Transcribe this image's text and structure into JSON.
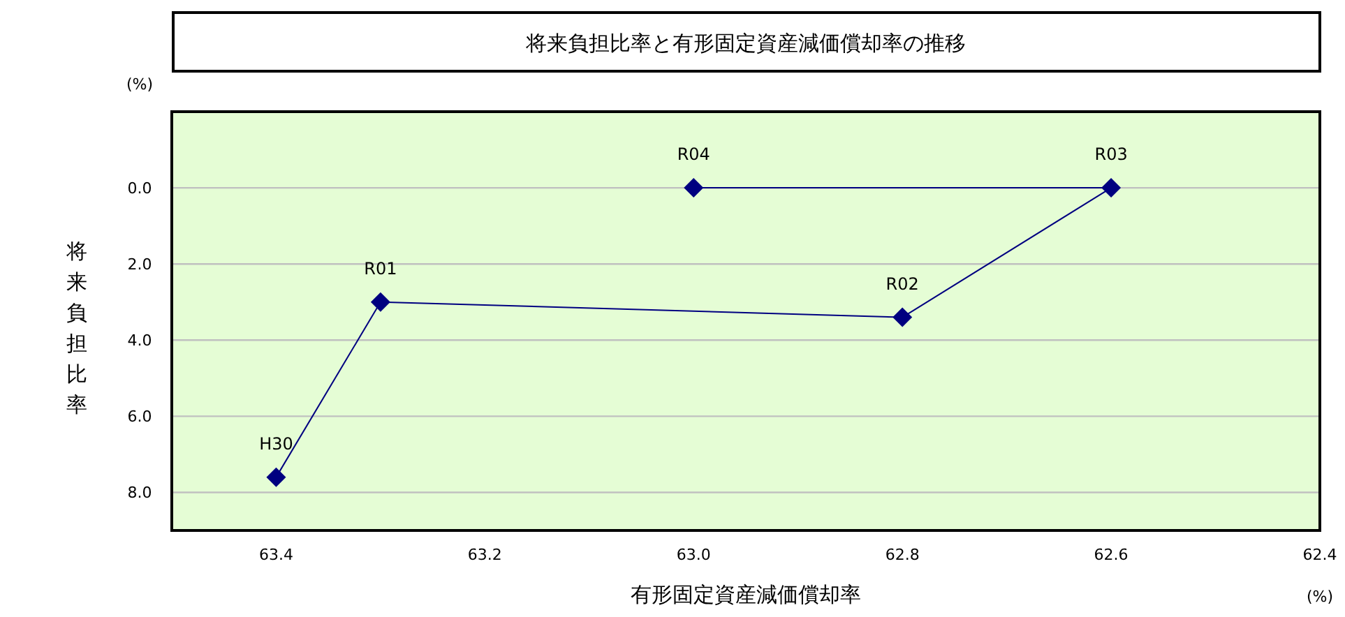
{
  "chart_data": {
    "type": "line",
    "title": "将来負担比率と有形固定資産減価償却率の推移",
    "xlabel": "有形固定資産減価償却率",
    "ylabel": "将来負担比率",
    "x": [
      63.4,
      63.3,
      62.8,
      62.6,
      63.0
    ],
    "series": [
      {
        "color": "#000080",
        "values": [
          7.6,
          3.0,
          3.4,
          0.0,
          0.0
        ]
      }
    ],
    "xlim": [
      63.5,
      62.4
    ],
    "xticks": [
      {
        "value": 63.4,
        "label": "63.4"
      },
      {
        "value": 63.2,
        "label": "63.2"
      },
      {
        "value": 63.0,
        "label": "63.0"
      },
      {
        "value": 62.8,
        "label": "62.8"
      },
      {
        "value": 62.6,
        "label": "62.6"
      },
      {
        "value": 62.4,
        "label": "62.4"
      }
    ],
    "ylim": [
      9,
      -2
    ],
    "yticks": [
      {
        "value": 0,
        "label": "0.0"
      },
      {
        "value": 2,
        "label": "2.0"
      },
      {
        "value": 4,
        "label": "4.0"
      },
      {
        "value": 6,
        "label": "6.0"
      },
      {
        "value": 8,
        "label": "8.0"
      }
    ],
    "grid": "y",
    "marker": "diamond",
    "line_style": "solid",
    "annotations": [
      "(%)",
      "(%)",
      {
        "text": "H30",
        "x": 63.4,
        "y": 7.6
      },
      {
        "text": "R01",
        "x": 63.3,
        "y": 3.0
      },
      {
        "text": "R02",
        "x": 62.8,
        "y": 3.4
      },
      {
        "text": "R03",
        "x": 62.6,
        "y": 0.0
      },
      {
        "text": "R04",
        "x": 63.0,
        "y": 0.0
      }
    ]
  }
}
